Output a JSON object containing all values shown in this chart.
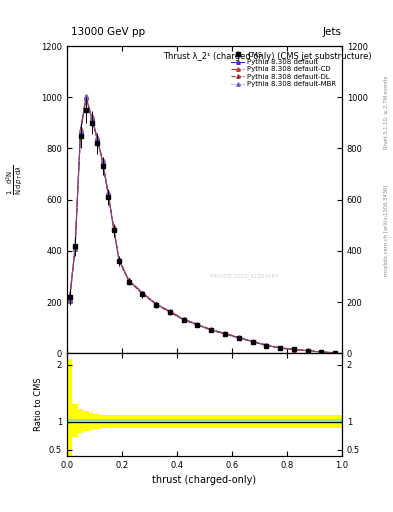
{
  "title": "Thrust λ_2¹ (charged only) (CMS jet substructure)",
  "top_label_left": "13000 GeV pp",
  "top_label_right": "Jets",
  "right_label_top": "Rivet 3.1.10, ≥ 2.7M events",
  "right_label_bottom": "mcplots.cern.ch [arXiv:1306.3436]",
  "xlabel": "thrust (charged-only)",
  "ylabel_lines": [
    "1",
    "mathrm d²N",
    "mathrm d p_T mathrm dλ"
  ],
  "ratio_ylabel": "Ratio to CMS",
  "watermark": "PRIVATE 2021_11920187",
  "legend_entries": [
    {
      "label": "CMS",
      "color": "black",
      "marker": "s",
      "linestyle": "none"
    },
    {
      "label": "Pythia 8.308 default",
      "color": "#3333cc",
      "marker": "^",
      "linestyle": "-"
    },
    {
      "label": "Pythia 8.308 default-CD",
      "color": "#cc3333",
      "marker": "^",
      "linestyle": "-."
    },
    {
      "label": "Pythia 8.308 default-DL",
      "color": "#993333",
      "marker": "^",
      "linestyle": "--"
    },
    {
      "label": "Pythia 8.308 default-MBR",
      "color": "#6666cc",
      "marker": "^",
      "linestyle": ":"
    }
  ],
  "thrust_bins": [
    0.0,
    0.02,
    0.04,
    0.06,
    0.08,
    0.1,
    0.12,
    0.14,
    0.16,
    0.18,
    0.2,
    0.25,
    0.3,
    0.35,
    0.4,
    0.45,
    0.5,
    0.55,
    0.6,
    0.65,
    0.7,
    0.75,
    0.8,
    0.85,
    0.9,
    0.95,
    1.0
  ],
  "cms_values": [
    220,
    420,
    850,
    950,
    900,
    820,
    730,
    610,
    480,
    360,
    280,
    230,
    190,
    160,
    130,
    110,
    90,
    75,
    60,
    45,
    30,
    20,
    15,
    10,
    5,
    2
  ],
  "cms_errors": [
    30,
    40,
    50,
    50,
    45,
    40,
    35,
    30,
    25,
    20,
    15,
    15,
    12,
    10,
    8,
    7,
    6,
    5,
    4,
    4,
    3,
    2,
    2,
    1,
    1,
    0.5
  ],
  "pythia_default_values": [
    210,
    410,
    870,
    1000,
    920,
    840,
    750,
    625,
    490,
    365,
    285,
    235,
    192,
    162,
    132,
    112,
    91,
    76,
    61,
    46,
    31,
    21,
    15,
    10,
    5,
    2
  ],
  "pythia_cd_values": [
    215,
    415,
    875,
    1005,
    925,
    845,
    755,
    630,
    493,
    368,
    287,
    237,
    194,
    164,
    134,
    114,
    93,
    78,
    63,
    48,
    33,
    22,
    16,
    11,
    5.5,
    2.1
  ],
  "pythia_dl_values": [
    205,
    408,
    865,
    998,
    918,
    838,
    748,
    622,
    487,
    362,
    282,
    232,
    190,
    160,
    130,
    110,
    90,
    75,
    60,
    45,
    30,
    20,
    14,
    10,
    5,
    2
  ],
  "pythia_mbr_values": [
    208,
    412,
    868,
    1002,
    921,
    841,
    751,
    626,
    490,
    364,
    284,
    234,
    191,
    161,
    131,
    111,
    91,
    76,
    61,
    46,
    31,
    21,
    15,
    10,
    5,
    2
  ],
  "ylim_main": [
    0,
    1200
  ],
  "main_yticks": [
    0,
    200,
    400,
    600,
    800,
    1000,
    1200
  ],
  "ylim_ratio": [
    0.4,
    2.2
  ],
  "ratio_yticks": [
    0.5,
    1.0,
    2.0
  ],
  "green_band_upper": [
    1.05,
    1.04,
    1.04,
    1.04,
    1.04,
    1.04,
    1.04,
    1.04,
    1.04,
    1.04,
    1.04,
    1.04,
    1.04,
    1.04,
    1.04,
    1.04,
    1.04,
    1.04,
    1.04,
    1.04,
    1.04,
    1.04,
    1.04,
    1.04,
    1.04,
    1.04
  ],
  "green_band_lower": [
    0.95,
    0.96,
    0.96,
    0.96,
    0.96,
    0.96,
    0.96,
    0.96,
    0.96,
    0.96,
    0.96,
    0.96,
    0.96,
    0.96,
    0.96,
    0.96,
    0.96,
    0.96,
    0.96,
    0.96,
    0.96,
    0.96,
    0.96,
    0.96,
    0.96,
    0.96
  ],
  "yellow_band_upper": [
    2.1,
    1.3,
    1.22,
    1.18,
    1.15,
    1.13,
    1.12,
    1.12,
    1.12,
    1.12,
    1.12,
    1.12,
    1.12,
    1.12,
    1.12,
    1.12,
    1.12,
    1.12,
    1.12,
    1.12,
    1.12,
    1.12,
    1.12,
    1.12,
    1.12,
    1.12
  ],
  "yellow_band_lower": [
    0.15,
    0.73,
    0.8,
    0.83,
    0.85,
    0.87,
    0.88,
    0.88,
    0.88,
    0.88,
    0.88,
    0.88,
    0.88,
    0.88,
    0.88,
    0.88,
    0.88,
    0.88,
    0.88,
    0.88,
    0.88,
    0.88,
    0.88,
    0.88,
    0.88,
    0.88
  ]
}
